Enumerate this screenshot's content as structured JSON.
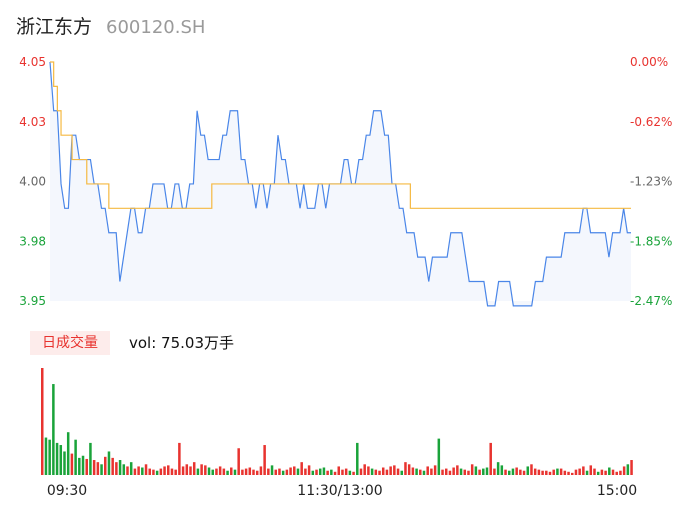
{
  "stock": {
    "name": "浙江东方",
    "code": "600120.SH"
  },
  "volume_panel": {
    "tab_label": "日成交量",
    "vol_prefix": "vol: ",
    "vol_value": "75.03万手"
  },
  "colors": {
    "price_line": "#4a86e8",
    "avg_line": "#f5b942",
    "up": "#e8332f",
    "down": "#1aa33a",
    "axis_text_up": "#e8332f",
    "axis_text_down": "#1aa33a",
    "area_fill": "#f4f7fd"
  },
  "chart_data": [
    {
      "type": "line",
      "y_tick_labels": [
        "4.05",
        "4.03",
        "4.00",
        "3.98",
        "3.95"
      ],
      "pct_tick_labels": [
        "0.00%",
        "-0.62%",
        "-1.23%",
        "-1.85%",
        "-2.47%"
      ],
      "ylim": [
        3.952,
        4.05
      ],
      "x_tick_labels": [
        "09:30",
        "11:30/13:00",
        "15:00"
      ],
      "series": [
        {
          "values": [
            4.05,
            4.03,
            4.03,
            4.0,
            3.99,
            3.99,
            4.02,
            4.02,
            4.01,
            4.01,
            4.01,
            4.01,
            4.0,
            4.0,
            3.99,
            3.99,
            3.98,
            3.98,
            3.98,
            3.96,
            3.97,
            3.98,
            3.99,
            3.99,
            3.98,
            3.98,
            3.99,
            3.99,
            4.0,
            4.0,
            4.0,
            4.0,
            3.99,
            3.99,
            4.0,
            4.0,
            3.99,
            3.99,
            4.0,
            4.0,
            4.03,
            4.02,
            4.02,
            4.01,
            4.01,
            4.01,
            4.01,
            4.02,
            4.02,
            4.03,
            4.03,
            4.03,
            4.01,
            4.01,
            4.0,
            4.0,
            3.99,
            4.0,
            4.0,
            3.99,
            4.0,
            4.0,
            4.02,
            4.01,
            4.01,
            4.0,
            4.0,
            4.0,
            3.99,
            4.0,
            3.99,
            3.99,
            3.99,
            4.0,
            4.0,
            3.99,
            4.0,
            4.0,
            4.0,
            4.0,
            4.01,
            4.01,
            4.0,
            4.0,
            4.01,
            4.01,
            4.02,
            4.02,
            4.03,
            4.03,
            4.03,
            4.02,
            4.02,
            4.0,
            4.0,
            3.99,
            3.99,
            3.98,
            3.98,
            3.98,
            3.97,
            3.97,
            3.97,
            3.96,
            3.97,
            3.97,
            3.97,
            3.97,
            3.97,
            3.98,
            3.98,
            3.98,
            3.98,
            3.97,
            3.96,
            3.96,
            3.96,
            3.96,
            3.96,
            3.95,
            3.95,
            3.95,
            3.96,
            3.96,
            3.96,
            3.96,
            3.95,
            3.95,
            3.95,
            3.95,
            3.95,
            3.95,
            3.96,
            3.96,
            3.96,
            3.97,
            3.97,
            3.97,
            3.97,
            3.97,
            3.98,
            3.98,
            3.98,
            3.98,
            3.98,
            3.99,
            3.99,
            3.98,
            3.98,
            3.98,
            3.98,
            3.98,
            3.97,
            3.98,
            3.98,
            3.98,
            3.99,
            3.98,
            3.98
          ],
          "avg": [
            4.05,
            4.04,
            4.03,
            4.02,
            4.02,
            4.02,
            4.01,
            4.01,
            4.01,
            4.01,
            4.0,
            4.0,
            4.0,
            4.0,
            4.0,
            4.0,
            3.99,
            3.99,
            3.99,
            3.99,
            3.99,
            3.99,
            3.99,
            3.99,
            3.99,
            3.99,
            3.99,
            3.99,
            3.99,
            3.99,
            3.99,
            3.99,
            3.99,
            3.99,
            3.99,
            3.99,
            3.99,
            3.99,
            3.99,
            3.99,
            3.99,
            3.99,
            3.99,
            3.99,
            4.0,
            4.0,
            4.0,
            4.0,
            4.0,
            4.0,
            4.0,
            4.0,
            4.0,
            4.0,
            4.0,
            4.0,
            4.0,
            4.0,
            4.0,
            4.0,
            4.0,
            4.0,
            4.0,
            4.0,
            4.0,
            4.0,
            4.0,
            4.0,
            4.0,
            4.0,
            4.0,
            4.0,
            4.0,
            4.0,
            4.0,
            4.0,
            4.0,
            4.0,
            4.0,
            4.0,
            4.0,
            4.0,
            4.0,
            4.0,
            4.0,
            4.0,
            4.0,
            4.0,
            4.0,
            4.0,
            4.0,
            4.0,
            4.0,
            4.0,
            4.0,
            4.0,
            4.0,
            4.0,
            3.99,
            3.99,
            3.99,
            3.99,
            3.99,
            3.99,
            3.99,
            3.99,
            3.99,
            3.99,
            3.99,
            3.99,
            3.99,
            3.99,
            3.99,
            3.99,
            3.99,
            3.99,
            3.99,
            3.99,
            3.99,
            3.99,
            3.99,
            3.99,
            3.99,
            3.99,
            3.99,
            3.99,
            3.99,
            3.99,
            3.99,
            3.99,
            3.99,
            3.99,
            3.99,
            3.99,
            3.99,
            3.99,
            3.99,
            3.99,
            3.99,
            3.99,
            3.99,
            3.99,
            3.99,
            3.99,
            3.99,
            3.99,
            3.99,
            3.99,
            3.99,
            3.99,
            3.99,
            3.99,
            3.99,
            3.99,
            3.99,
            3.99,
            3.99,
            3.99,
            3.99,
            3.99,
            3.99
          ]
        }
      ]
    },
    {
      "type": "bar",
      "volume": [
        100,
        35,
        33,
        85,
        30,
        28,
        22,
        40,
        20,
        33,
        16,
        18,
        15,
        30,
        14,
        12,
        10,
        17,
        22,
        16,
        12,
        14,
        10,
        8,
        12,
        6,
        8,
        7,
        10,
        6,
        5,
        4,
        6,
        8,
        9,
        6,
        5,
        30,
        8,
        10,
        8,
        12,
        6,
        10,
        9,
        7,
        5,
        6,
        8,
        6,
        4,
        7,
        5,
        25,
        5,
        6,
        7,
        5,
        4,
        8,
        28,
        6,
        9,
        5,
        6,
        4,
        5,
        7,
        8,
        6,
        12,
        6,
        9,
        4,
        5,
        6,
        7,
        4,
        5,
        3,
        8,
        5,
        6,
        4,
        3,
        30,
        6,
        10,
        8,
        6,
        5,
        4,
        7,
        5,
        8,
        9,
        6,
        4,
        12,
        10,
        7,
        6,
        5,
        4,
        8,
        6,
        9,
        34,
        5,
        6,
        4,
        7,
        9,
        6,
        5,
        4,
        10,
        8,
        5,
        6,
        7,
        30,
        6,
        12,
        9,
        5,
        4,
        6,
        7,
        5,
        4,
        8,
        10,
        6,
        5,
        4,
        4,
        3,
        5,
        6,
        6,
        4,
        3,
        2,
        5,
        6,
        8,
        4,
        9,
        6,
        3,
        5,
        4,
        7,
        5,
        3,
        4,
        8,
        10,
        14
      ],
      "up_days": [
        true,
        false,
        false,
        false,
        false,
        false,
        false,
        false,
        true,
        false,
        false,
        false,
        true,
        false,
        true,
        true,
        false,
        true,
        false,
        true,
        true,
        false,
        false,
        true,
        false,
        true,
        true,
        false,
        true,
        true,
        true,
        false,
        true,
        true,
        true,
        true,
        true,
        true,
        true,
        true,
        true,
        true,
        false,
        true,
        true,
        false,
        false,
        true,
        true,
        true,
        false,
        true,
        false,
        true,
        true,
        true,
        true,
        true,
        true,
        true,
        true,
        true,
        false,
        true,
        true,
        false,
        true,
        true,
        true,
        false,
        true,
        true,
        true,
        false,
        true,
        false,
        false,
        true,
        false,
        true,
        true,
        true,
        true,
        false,
        true,
        false,
        true,
        true,
        true,
        false,
        true,
        true,
        true,
        true,
        true,
        true,
        true,
        false,
        true,
        true,
        true,
        false,
        true,
        false,
        true,
        true,
        true,
        false,
        true,
        true,
        true,
        true,
        true,
        false,
        true,
        true,
        true,
        false,
        true,
        false,
        false,
        true,
        true,
        false,
        false,
        true,
        false,
        false,
        true,
        true,
        true,
        false,
        true,
        true,
        true,
        true,
        true,
        true,
        true,
        false,
        true,
        true,
        true,
        true,
        true,
        true,
        true,
        false,
        true,
        true,
        false,
        true,
        true,
        false,
        true,
        true,
        true,
        true,
        false,
        true
      ]
    }
  ]
}
